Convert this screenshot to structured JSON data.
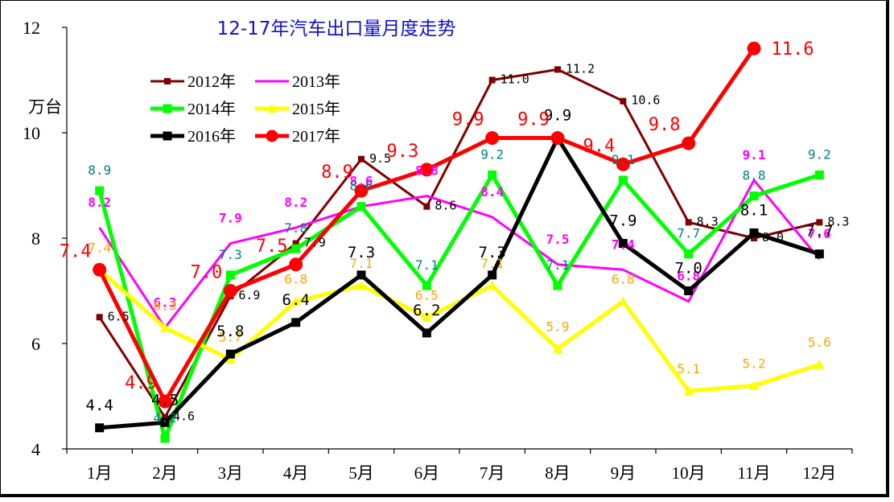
{
  "chart_data": {
    "type": "line",
    "title": "12-17年汽车出口量月度走势",
    "ylabel": "万台",
    "xlabel": "",
    "ylim": [
      4,
      12
    ],
    "yticks": [
      4,
      6,
      8,
      10,
      12
    ],
    "categories": [
      "1月",
      "2月",
      "3月",
      "4月",
      "5月",
      "6月",
      "7月",
      "8月",
      "9月",
      "10月",
      "11月",
      "12月"
    ],
    "legend_position": "top-left",
    "grid": false,
    "series": [
      {
        "name": "2012年",
        "color": "#7f0000",
        "marker": "square",
        "label_color": "#000000",
        "values": [
          6.5,
          4.6,
          6.9,
          7.9,
          9.5,
          8.6,
          11.0,
          11.2,
          10.6,
          8.3,
          8.0,
          8.3
        ]
      },
      {
        "name": "2013年",
        "color": "#ff00ff",
        "marker": "none",
        "label_color": "#ff00ff",
        "values": [
          8.2,
          6.3,
          7.9,
          8.2,
          8.6,
          8.8,
          8.4,
          7.5,
          7.4,
          6.8,
          9.1,
          7.6
        ]
      },
      {
        "name": "2014年",
        "color": "#00ff00",
        "marker": "square",
        "label_color": "#008080",
        "values": [
          8.9,
          4.2,
          7.3,
          7.8,
          8.6,
          7.1,
          9.2,
          7.1,
          9.1,
          7.7,
          8.8,
          9.2
        ]
      },
      {
        "name": "2015年",
        "color": "#ffff00",
        "marker": "triangle",
        "label_color": "#ffa500",
        "values": [
          7.4,
          6.3,
          5.7,
          6.8,
          7.1,
          6.5,
          7.1,
          5.9,
          6.8,
          5.1,
          5.2,
          5.6
        ]
      },
      {
        "name": "2016年",
        "color": "#000000",
        "marker": "square",
        "label_color": "#000000",
        "values": [
          4.4,
          4.5,
          5.8,
          6.4,
          7.3,
          6.2,
          7.3,
          9.9,
          7.9,
          7.0,
          8.1,
          7.7
        ]
      },
      {
        "name": "2017年",
        "color": "#ff0000",
        "marker": "circle",
        "label_color": "#ff0000",
        "values": [
          7.4,
          4.9,
          7.0,
          7.5,
          8.9,
          9.3,
          9.9,
          9.9,
          9.4,
          9.8,
          11.6,
          null
        ]
      }
    ]
  }
}
